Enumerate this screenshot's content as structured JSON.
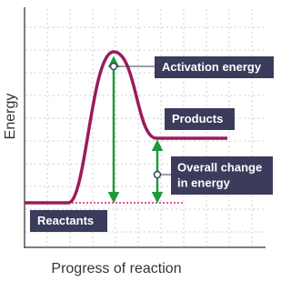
{
  "axes": {
    "y_label": "Energy",
    "x_label": "Progress of reaction"
  },
  "labels": {
    "activation_energy": "Activation energy",
    "products": "Products",
    "overall_change": [
      "Overall change",
      "in energy"
    ],
    "reactants": "Reactants"
  }
}
